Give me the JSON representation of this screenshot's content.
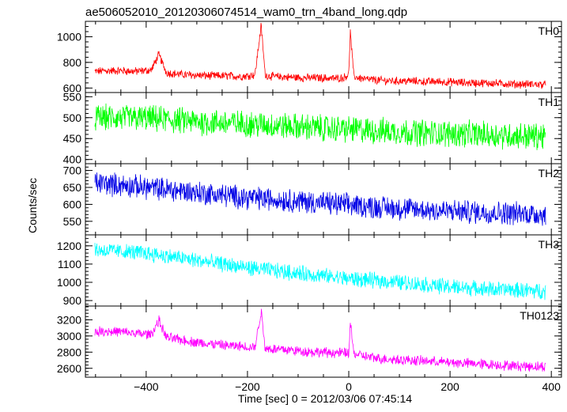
{
  "chart_data": {
    "type": "line",
    "title": "ae506052010_20120306074514_wam0_trn_4band_long.qdp",
    "xlabel": "Time [sec] 0 = 2012/03/06 07:45:14",
    "ylabel": "Counts/sec",
    "xlim": [
      -520,
      420
    ],
    "x_ticks": [
      -400,
      -200,
      0,
      200,
      400
    ],
    "grid": false,
    "series": [
      {
        "name": "TH0",
        "color": "#ff0000",
        "ylim": [
          565,
          1120
        ],
        "y_ticks": [
          600,
          800,
          1000
        ],
        "x": [
          -510,
          -480,
          -450,
          -420,
          -390,
          -375,
          -360,
          -330,
          -300,
          -270,
          -240,
          -210,
          -185,
          -173,
          -165,
          -150,
          -120,
          -90,
          -60,
          -30,
          -10,
          0,
          3,
          10,
          30,
          60,
          90,
          120,
          150,
          180,
          210,
          240,
          270,
          300,
          330,
          360,
          390,
          410
        ],
        "values": [
          725,
          735,
          735,
          730,
          740,
          860,
          720,
          705,
          700,
          695,
          695,
          690,
          705,
          1090,
          700,
          690,
          685,
          680,
          680,
          675,
          680,
          710,
          1040,
          690,
          670,
          660,
          655,
          655,
          650,
          650,
          645,
          640,
          640,
          635,
          630,
          630,
          625,
          625
        ],
        "noise": 28
      },
      {
        "name": "TH1",
        "color": "#00ff00",
        "ylim": [
          390,
          560
        ],
        "y_ticks": [
          400,
          450,
          500,
          550
        ],
        "x": [
          -510,
          -400,
          -300,
          -200,
          -100,
          0,
          100,
          200,
          300,
          410
        ],
        "values": [
          500,
          498,
          490,
          485,
          478,
          472,
          466,
          462,
          458,
          455
        ],
        "noise": 28
      },
      {
        "name": "TH2",
        "color": "#0000e6",
        "ylim": [
          510,
          720
        ],
        "y_ticks": [
          550,
          600,
          650,
          700
        ],
        "x": [
          -510,
          -400,
          -300,
          -200,
          -100,
          0,
          100,
          200,
          300,
          410
        ],
        "values": [
          665,
          650,
          635,
          620,
          610,
          598,
          588,
          580,
          575,
          570
        ],
        "noise": 30
      },
      {
        "name": "TH3",
        "color": "#00ffff",
        "ylim": [
          870,
          1260
        ],
        "y_ticks": [
          900,
          1000,
          1100,
          1200
        ],
        "x": [
          -510,
          -400,
          -300,
          -200,
          -100,
          0,
          100,
          200,
          300,
          410
        ],
        "values": [
          1180,
          1160,
          1120,
          1080,
          1050,
          1020,
          1000,
          975,
          960,
          950
        ],
        "noise": 38
      },
      {
        "name": "TH0123",
        "color": "#ff00ff",
        "ylim": [
          2490,
          3370
        ],
        "y_ticks": [
          2600,
          2800,
          3000,
          3200
        ],
        "x": [
          -510,
          -480,
          -450,
          -420,
          -390,
          -375,
          -360,
          -330,
          -300,
          -270,
          -240,
          -210,
          -185,
          -173,
          -165,
          -150,
          -120,
          -90,
          -60,
          -30,
          -10,
          0,
          3,
          10,
          30,
          60,
          90,
          120,
          150,
          180,
          210,
          240,
          270,
          300,
          330,
          360,
          390,
          410
        ],
        "values": [
          3050,
          3060,
          3050,
          3030,
          3020,
          3190,
          2980,
          2950,
          2920,
          2900,
          2880,
          2870,
          2860,
          3310,
          2850,
          2840,
          2830,
          2810,
          2800,
          2790,
          2790,
          2790,
          3170,
          2780,
          2750,
          2720,
          2710,
          2700,
          2690,
          2680,
          2670,
          2660,
          2650,
          2640,
          2630,
          2625,
          2620,
          2620
        ],
        "noise": 55
      }
    ]
  }
}
